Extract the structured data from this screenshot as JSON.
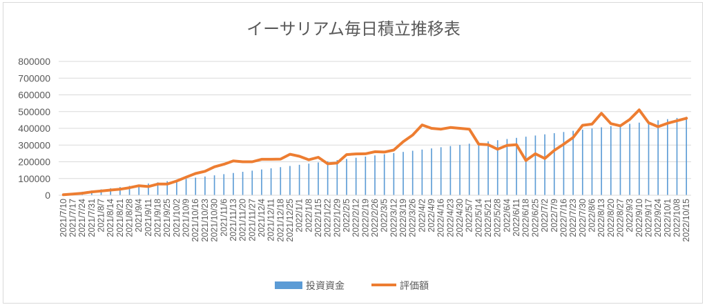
{
  "chart_data": {
    "type": "bar+line",
    "title": "イーサリアム毎日積立推移表",
    "xlabel": "",
    "ylabel": "",
    "ylim": [
      0,
      800000
    ],
    "yticks": [
      "800000",
      "700000",
      "600000",
      "500000",
      "400000",
      "300000",
      "200000",
      "100000",
      "0"
    ],
    "ytick_values": [
      800000,
      700000,
      600000,
      500000,
      400000,
      300000,
      200000,
      100000,
      0
    ],
    "grid": true,
    "legend_position": "bottom",
    "colors": {
      "bar": "#5b9bd5",
      "line": "#ed7d31",
      "grid": "#d9d9d9",
      "text": "#595959"
    },
    "categories": [
      "2021/7/10",
      "2021/7/17",
      "2021/7/24",
      "2021/7/31",
      "2021/8/7",
      "2021/8/14",
      "2021/8/21",
      "2021/8/28",
      "2021/9/4",
      "2021/9/11",
      "2021/9/18",
      "2021/9/25",
      "2021/10/2",
      "2021/10/9",
      "2021/10/16",
      "2021/10/23",
      "2021/10/30",
      "2021/11/6",
      "2021/11/13",
      "2021/11/20",
      "2021/11/27",
      "2021/12/4",
      "2021/12/11",
      "2021/12/18",
      "2021/12/25",
      "2022/1/1",
      "2022/1/8",
      "2022/1/15",
      "2022/1/22",
      "2022/1/29",
      "2022/2/5",
      "2022/2/12",
      "2022/2/19",
      "2022/2/26",
      "2022/3/5",
      "2022/3/12",
      "2022/3/19",
      "2022/3/26",
      "2022/4/2",
      "2022/4/9",
      "2022/4/16",
      "2022/4/23",
      "2022/4/30",
      "2022/5/7",
      "2022/5/14",
      "2022/5/21",
      "2022/5/28",
      "2022/6/4",
      "2022/6/11",
      "2022/6/18",
      "2022/6/25",
      "2022/7/2",
      "2022/7/9",
      "2022/7/16",
      "2022/7/23",
      "2022/7/30",
      "2022/8/6",
      "2022/8/13",
      "2022/8/20",
      "2022/8/27",
      "2022/9/3",
      "2022/9/10",
      "2022/9/17",
      "2022/9/24",
      "2022/10/1",
      "2022/10/8",
      "2022/10/15"
    ],
    "series": [
      {
        "name": "投資資金",
        "type": "bar",
        "values": [
          7000,
          14000,
          21000,
          28000,
          35000,
          42000,
          49000,
          56000,
          63000,
          70000,
          77000,
          84000,
          91000,
          98000,
          105000,
          112000,
          119000,
          126000,
          133000,
          140000,
          147000,
          154000,
          161000,
          168000,
          175000,
          182000,
          189000,
          196000,
          203000,
          210000,
          217000,
          224000,
          231000,
          238000,
          245000,
          252000,
          259000,
          266000,
          273000,
          280000,
          287000,
          294000,
          301000,
          308000,
          315000,
          322000,
          329000,
          336000,
          343000,
          350000,
          357000,
          364000,
          371000,
          378000,
          385000,
          392000,
          399000,
          406000,
          413000,
          420000,
          427000,
          434000,
          441000,
          448000,
          455000,
          462000,
          469000
        ]
      },
      {
        "name": "評価額",
        "type": "line",
        "values": [
          3000,
          7000,
          12000,
          20000,
          25000,
          31000,
          36000,
          45000,
          57000,
          52000,
          67000,
          67000,
          85000,
          108000,
          130000,
          143000,
          170000,
          185000,
          205000,
          200000,
          200000,
          215000,
          215000,
          216000,
          245000,
          233000,
          212000,
          227000,
          188000,
          193000,
          243000,
          247000,
          248000,
          260000,
          258000,
          270000,
          320000,
          360000,
          420000,
          400000,
          395000,
          405000,
          400000,
          395000,
          305000,
          302000,
          275000,
          298000,
          302000,
          208000,
          248000,
          220000,
          268000,
          305000,
          345000,
          418000,
          425000,
          490000,
          428000,
          415000,
          453000,
          510000,
          433000,
          410000,
          430000,
          445000,
          460000
        ]
      }
    ]
  }
}
